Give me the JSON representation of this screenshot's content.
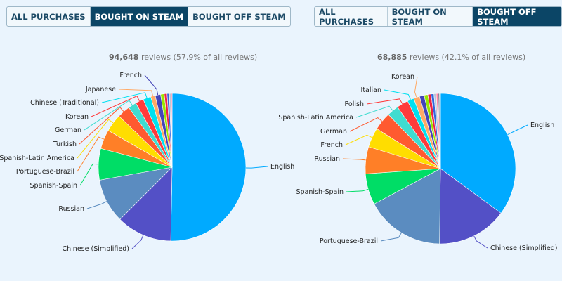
{
  "panels": [
    {
      "tabs": [
        "ALL PURCHASES",
        "BOUGHT ON STEAM",
        "BOUGHT OFF STEAM"
      ],
      "active_tab": 1,
      "review_count": "94,648",
      "review_text": " reviews (57.9% of all reviews)"
    },
    {
      "tabs": [
        "ALL PURCHASES",
        "BOUGHT ON STEAM",
        "BOUGHT OFF STEAM"
      ],
      "active_tab": 2,
      "review_count": "68,885",
      "review_text": " reviews (42.1% of all reviews)"
    }
  ],
  "colors": [
    "#00aaff",
    "#5350c6",
    "#5b8cc0",
    "#00dd66",
    "#ff7f27",
    "#ffdd00",
    "#ff5a30",
    "#40dcd0",
    "#ff3b3b",
    "#00e0f0",
    "#ffaa66",
    "#4444b8",
    "#99e600",
    "#ee2244",
    "#3366dd",
    "#b8c8d8",
    "#ff88aa",
    "#888899",
    "#aa6688"
  ],
  "chart_data": [
    {
      "type": "pie",
      "slices": [
        {
          "label": "English",
          "value": 50.3
        },
        {
          "label": "Chinese (Simplified)",
          "value": 12.2
        },
        {
          "label": "Russian",
          "value": 9.7
        },
        {
          "label": "Spanish-Spain",
          "value": 6.9
        },
        {
          "label": "Portuguese-Brazil",
          "value": 4.2
        },
        {
          "label": "Spanish-Latin America",
          "value": 3.9
        },
        {
          "label": "Turkish",
          "value": 2.8
        },
        {
          "label": "German",
          "value": 1.8
        },
        {
          "label": "Korean",
          "value": 1.8
        },
        {
          "label": "Chinese (Traditional)",
          "value": 1.7
        },
        {
          "label": "Japanese",
          "value": 1.0
        },
        {
          "label": "French",
          "value": 1.2
        },
        {
          "label": "",
          "value": 0.8
        },
        {
          "label": "",
          "value": 0.6
        },
        {
          "label": "",
          "value": 0.5
        },
        {
          "label": "",
          "value": 0.4
        },
        {
          "label": "",
          "value": 0.2
        }
      ]
    },
    {
      "type": "pie",
      "slices": [
        {
          "label": "English",
          "value": 35.1
        },
        {
          "label": "Chinese (Simplified)",
          "value": 15.1
        },
        {
          "label": "Portuguese-Brazil",
          "value": 17.0
        },
        {
          "label": "Spanish-Spain",
          "value": 6.7
        },
        {
          "label": "Russian",
          "value": 5.8
        },
        {
          "label": "French",
          "value": 4.2
        },
        {
          "label": "German",
          "value": 3.9
        },
        {
          "label": "Spanish-Latin America",
          "value": 2.5
        },
        {
          "label": "Polish",
          "value": 2.5
        },
        {
          "label": "Italian",
          "value": 1.4
        },
        {
          "label": "Korean",
          "value": 1.3
        },
        {
          "label": "",
          "value": 1.0
        },
        {
          "label": "",
          "value": 0.8
        },
        {
          "label": "",
          "value": 0.7
        },
        {
          "label": "",
          "value": 0.6
        },
        {
          "label": "",
          "value": 0.5
        },
        {
          "label": "",
          "value": 0.4
        },
        {
          "label": "",
          "value": 0.3
        },
        {
          "label": "",
          "value": 0.2
        }
      ]
    }
  ]
}
